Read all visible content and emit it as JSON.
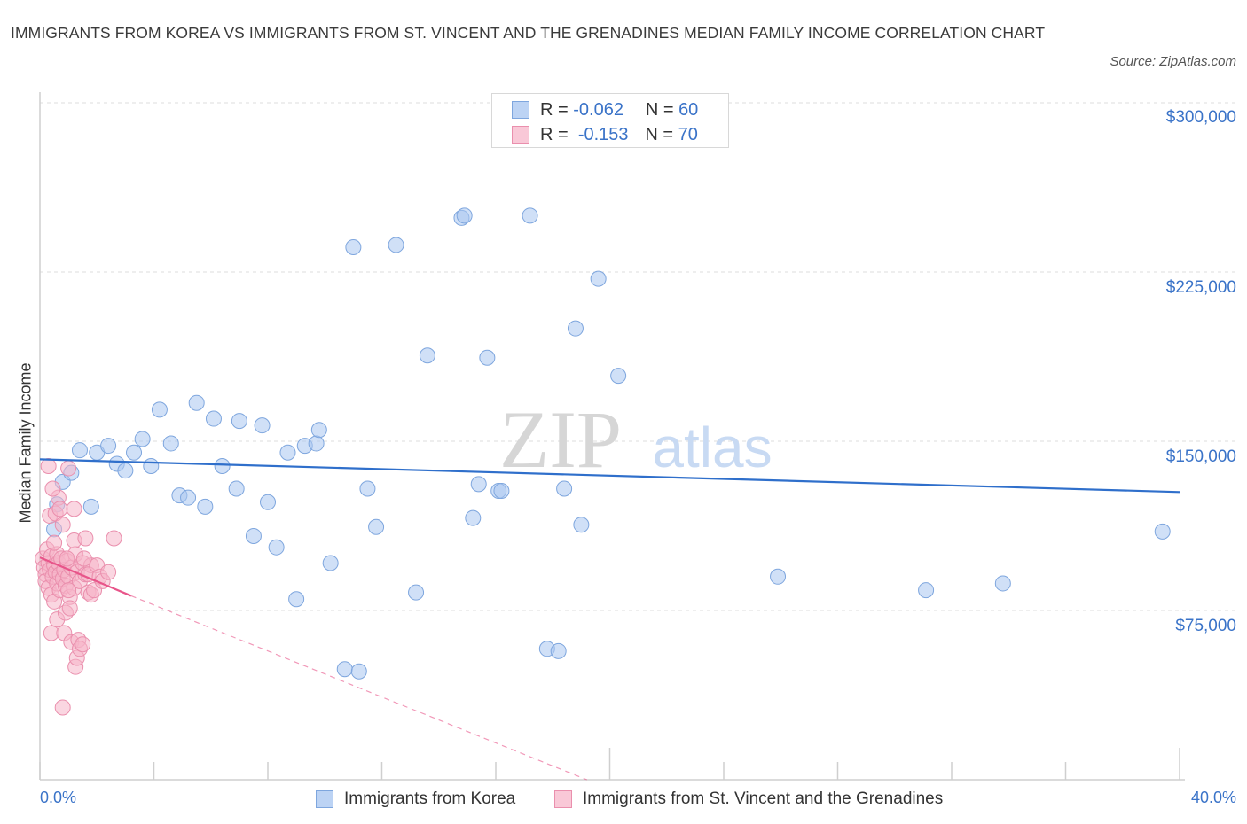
{
  "chart_data": {
    "type": "scatter",
    "title": "IMMIGRANTS FROM KOREA VS IMMIGRANTS FROM ST. VINCENT AND THE GRENADINES MEDIAN FAMILY INCOME CORRELATION CHART",
    "source": "Source: ZipAtlas.com",
    "watermark": {
      "zip": "ZIP",
      "atlas": "atlas"
    },
    "ylabel": "Median Family Income",
    "xlim": [
      0,
      40
    ],
    "ylim": [
      0,
      300000
    ],
    "x_tick_labels": {
      "min": "0.0%",
      "max": "40.0%"
    },
    "y_ticks": [
      {
        "value": 300000,
        "label": "$300,000"
      },
      {
        "value": 225000,
        "label": "$225,000"
      },
      {
        "value": 150000,
        "label": "$150,000"
      },
      {
        "value": 75000,
        "label": "$75,000"
      }
    ],
    "legend_stats": [
      {
        "r_label": "R =",
        "r_value": "-0.062",
        "n_label": "N =",
        "n_value": "60"
      },
      {
        "r_label": "R =",
        "r_value": "-0.153",
        "n_label": "N =",
        "n_value": "70"
      }
    ],
    "series": [
      {
        "name": "Immigrants from Korea",
        "color": "#a9c6f0",
        "stroke": "#7ea6de",
        "line_color": "#2f6fcb",
        "trend": {
          "x": [
            0.0,
            40.0
          ],
          "y": [
            142000,
            127500
          ]
        },
        "points": [
          [
            0.5,
            111000
          ],
          [
            0.8,
            132000
          ],
          [
            1.1,
            136000
          ],
          [
            1.4,
            146000
          ],
          [
            1.8,
            121000
          ],
          [
            2.0,
            145000
          ],
          [
            2.4,
            148000
          ],
          [
            2.7,
            140000
          ],
          [
            3.0,
            137000
          ],
          [
            3.3,
            145000
          ],
          [
            3.6,
            151000
          ],
          [
            3.9,
            139000
          ],
          [
            4.2,
            164000
          ],
          [
            4.6,
            149000
          ],
          [
            4.9,
            126000
          ],
          [
            5.2,
            125000
          ],
          [
            5.5,
            167000
          ],
          [
            5.8,
            121000
          ],
          [
            6.1,
            160000
          ],
          [
            6.4,
            139000
          ],
          [
            6.9,
            129000
          ],
          [
            7.0,
            159000
          ],
          [
            7.5,
            108000
          ],
          [
            7.8,
            157000
          ],
          [
            8.0,
            123000
          ],
          [
            8.3,
            103000
          ],
          [
            8.7,
            145000
          ],
          [
            9.0,
            80000
          ],
          [
            9.3,
            148000
          ],
          [
            9.7,
            149000
          ],
          [
            9.8,
            155000
          ],
          [
            10.2,
            96000
          ],
          [
            10.7,
            49000
          ],
          [
            11.0,
            236000
          ],
          [
            11.2,
            48000
          ],
          [
            11.5,
            129000
          ],
          [
            11.8,
            112000
          ],
          [
            12.5,
            237000
          ],
          [
            13.2,
            83000
          ],
          [
            13.6,
            188000
          ],
          [
            14.8,
            249000
          ],
          [
            14.9,
            250000
          ],
          [
            15.2,
            116000
          ],
          [
            15.4,
            131000
          ],
          [
            15.7,
            187000
          ],
          [
            16.1,
            128000
          ],
          [
            16.2,
            128000
          ],
          [
            17.2,
            250000
          ],
          [
            17.8,
            58000
          ],
          [
            18.2,
            57000
          ],
          [
            18.4,
            129000
          ],
          [
            18.8,
            200000
          ],
          [
            19.0,
            113000
          ],
          [
            19.6,
            222000
          ],
          [
            20.3,
            179000
          ],
          [
            25.9,
            90000
          ],
          [
            31.1,
            84000
          ],
          [
            33.8,
            87000
          ],
          [
            39.4,
            110000
          ],
          [
            0.6,
            122000
          ]
        ]
      },
      {
        "name": "Immigrants from St. Vincent and the Grenadines",
        "color": "#f5b4c9",
        "stroke": "#ea8fad",
        "line_color": "#e8558a",
        "trend": {
          "x": [
            0.0,
            3.2
          ],
          "y": [
            98500,
            81500
          ]
        },
        "trend_ext": {
          "x": [
            3.2,
            19.2
          ],
          "y": [
            81500,
            0
          ]
        },
        "points": [
          [
            0.1,
            98000
          ],
          [
            0.15,
            94000
          ],
          [
            0.2,
            91000
          ],
          [
            0.2,
            88000
          ],
          [
            0.25,
            102000
          ],
          [
            0.3,
            96000
          ],
          [
            0.3,
            85000
          ],
          [
            0.35,
            93000
          ],
          [
            0.4,
            99000
          ],
          [
            0.4,
            82000
          ],
          [
            0.45,
            90000
          ],
          [
            0.5,
            95000
          ],
          [
            0.5,
            79000
          ],
          [
            0.55,
            92000
          ],
          [
            0.6,
            100000
          ],
          [
            0.6,
            87000
          ],
          [
            0.65,
            96000
          ],
          [
            0.7,
            84000
          ],
          [
            0.7,
            91000
          ],
          [
            0.75,
            98000
          ],
          [
            0.8,
            89000
          ],
          [
            0.85,
            93000
          ],
          [
            0.9,
            86000
          ],
          [
            0.95,
            97000
          ],
          [
            1.0,
            90000
          ],
          [
            1.05,
            81000
          ],
          [
            1.1,
            94000
          ],
          [
            1.2,
            85000
          ],
          [
            1.25,
            100000
          ],
          [
            1.3,
            92000
          ],
          [
            1.4,
            88000
          ],
          [
            1.5,
            96000
          ],
          [
            1.6,
            91000
          ],
          [
            1.7,
            83000
          ],
          [
            1.8,
            95000
          ],
          [
            0.3,
            139000
          ],
          [
            0.35,
            117000
          ],
          [
            0.4,
            65000
          ],
          [
            0.5,
            105000
          ],
          [
            0.55,
            118000
          ],
          [
            0.6,
            71000
          ],
          [
            0.65,
            125000
          ],
          [
            0.7,
            120000
          ],
          [
            0.8,
            113000
          ],
          [
            0.85,
            65000
          ],
          [
            0.9,
            74000
          ],
          [
            0.95,
            98000
          ],
          [
            1.0,
            84000
          ],
          [
            1.05,
            76000
          ],
          [
            1.1,
            61000
          ],
          [
            1.2,
            106000
          ],
          [
            1.25,
            50000
          ],
          [
            1.3,
            54000
          ],
          [
            1.35,
            62000
          ],
          [
            1.4,
            58000
          ],
          [
            1.5,
            60000
          ],
          [
            1.55,
            98000
          ],
          [
            1.6,
            107000
          ],
          [
            1.7,
            91000
          ],
          [
            1.8,
            82000
          ],
          [
            1.9,
            84000
          ],
          [
            2.0,
            95000
          ],
          [
            2.1,
            90000
          ],
          [
            2.2,
            88000
          ],
          [
            2.4,
            92000
          ],
          [
            0.8,
            32000
          ],
          [
            1.2,
            120000
          ],
          [
            1.0,
            138000
          ],
          [
            0.45,
            129000
          ],
          [
            2.6,
            107000
          ]
        ]
      }
    ]
  }
}
